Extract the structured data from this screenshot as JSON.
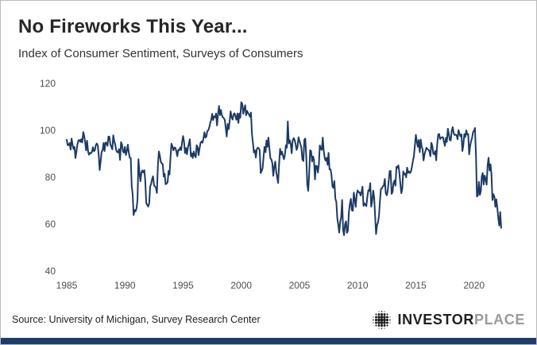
{
  "header": {
    "title": "No Fireworks This Year...",
    "subtitle": "Index of Consumer Sentiment, Surveys of Consumers"
  },
  "footer": {
    "source": "Source: University of Michigan, Survey Research Center",
    "brand_primary": "INVESTOR",
    "brand_secondary": "PLACE",
    "brand_icon": "dot-globe-icon"
  },
  "colors": {
    "line": "#1b3a66",
    "bottom_bar": "#1d3e6b",
    "title_text": "#262626",
    "axis_text": "#4d4d4d",
    "logo_dark": "#1c1c1c",
    "logo_gray": "#9a9a9a"
  },
  "chart_data": {
    "type": "line",
    "title": "No Fireworks This Year...",
    "subtitle": "Index of Consumer Sentiment, Surveys of Consumers",
    "xlabel": "",
    "ylabel": "",
    "ylim": [
      40,
      120
    ],
    "y_ticks": [
      40,
      60,
      80,
      100,
      120
    ],
    "x_ticks": [
      1985,
      1990,
      1995,
      2000,
      2005,
      2010,
      2015,
      2020
    ],
    "x_domain": [
      1985,
      2023.5
    ],
    "x_start_year": 1985,
    "frequency": "monthly",
    "grid": false,
    "legend": "none",
    "line_color": "#1b3a66",
    "series": [
      {
        "name": "Index of Consumer Sentiment",
        "values": [
          96.0,
          93.7,
          93.7,
          94.6,
          91.8,
          96.5,
          94.0,
          92.1,
          92.9,
          88.2,
          90.9,
          93.9,
          95.6,
          95.9,
          95.1,
          96.2,
          94.8,
          99.3,
          97.7,
          94.9,
          91.5,
          95.6,
          91.0,
          89.6,
          90.4,
          90.2,
          90.8,
          92.8,
          91.1,
          91.5,
          93.7,
          94.4,
          93.6,
          89.3,
          83.1,
          86.8,
          90.8,
          91.6,
          94.6,
          91.2,
          94.8,
          94.7,
          93.4,
          97.4,
          97.3,
          94.1,
          93.0,
          91.9,
          97.9,
          95.4,
          94.1,
          91.5,
          90.7,
          90.6,
          92.0,
          87.4,
          95.0,
          93.9,
          91.0,
          90.5,
          93.0,
          89.5,
          91.3,
          93.9,
          90.6,
          88.3,
          88.2,
          76.4,
          72.8,
          63.9,
          66.0,
          65.5,
          66.8,
          70.4,
          87.7,
          81.8,
          78.3,
          82.1,
          82.9,
          82.0,
          83.0,
          78.3,
          69.1,
          68.2,
          67.5,
          68.8,
          76.0,
          77.2,
          79.2,
          80.4,
          76.6,
          76.1,
          75.5,
          73.3,
          85.3,
          91.0,
          89.3,
          86.6,
          85.9,
          85.6,
          80.3,
          81.5,
          77.0,
          77.3,
          77.9,
          82.7,
          81.2,
          88.2,
          94.3,
          93.2,
          91.5,
          92.6,
          92.6,
          91.2,
          89.0,
          91.7,
          91.5,
          92.7,
          91.6,
          95.1,
          97.6,
          95.1,
          90.3,
          92.5,
          89.8,
          92.7,
          94.4,
          96.2,
          88.9,
          90.2,
          88.2,
          91.0,
          89.3,
          88.5,
          93.7,
          92.7,
          89.4,
          92.4,
          94.7,
          95.3,
          94.7,
          96.5,
          99.2,
          96.9,
          97.4,
          99.7,
          100.0,
          101.4,
          103.2,
          104.5,
          107.1,
          104.4,
          106.0,
          105.6,
          107.2,
          102.1,
          106.6,
          110.4,
          106.5,
          108.7,
          106.5,
          105.6,
          105.2,
          104.4,
          100.9,
          97.4,
          102.7,
          100.5,
          103.9,
          108.1,
          105.7,
          104.6,
          106.8,
          107.3,
          106.0,
          104.5,
          107.2,
          103.2,
          107.2,
          105.4,
          112.0,
          111.3,
          107.1,
          109.2,
          110.7,
          106.4,
          108.3,
          107.3,
          106.8,
          105.8,
          107.6,
          98.4,
          94.7,
          90.6,
          91.5,
          88.4,
          92.0,
          92.6,
          92.4,
          91.5,
          81.8,
          82.7,
          83.9,
          88.8,
          93.0,
          90.7,
          95.7,
          93.0,
          96.9,
          92.4,
          88.1,
          87.6,
          86.1,
          80.6,
          84.2,
          86.7,
          82.4,
          79.9,
          77.6,
          86.0,
          92.1,
          89.7,
          90.9,
          89.3,
          87.7,
          89.6,
          93.7,
          92.6,
          103.8,
          94.4,
          95.8,
          94.2,
          90.2,
          95.6,
          96.7,
          95.9,
          94.2,
          91.7,
          92.8,
          97.1,
          95.5,
          94.1,
          92.6,
          87.7,
          86.9,
          96.0,
          96.5,
          89.1,
          76.9,
          74.2,
          81.6,
          91.5,
          91.2,
          86.7,
          88.9,
          87.4,
          79.1,
          84.9,
          84.7,
          82.0,
          85.4,
          93.6,
          92.1,
          91.7,
          96.9,
          91.3,
          88.4,
          87.1,
          88.3,
          85.3,
          90.4,
          83.4,
          83.4,
          80.9,
          76.1,
          75.5,
          78.4,
          70.8,
          69.5,
          62.6,
          59.8,
          56.4,
          61.2,
          63.0,
          70.3,
          57.6,
          55.3,
          60.1,
          61.2,
          56.3,
          57.3,
          65.1,
          68.7,
          70.8,
          66.0,
          65.7,
          73.5,
          70.6,
          67.4,
          72.5,
          74.4,
          73.6,
          73.6,
          72.2,
          73.6,
          76.0,
          67.8,
          68.9,
          68.2,
          67.7,
          71.6,
          74.5,
          74.2,
          77.5,
          67.5,
          69.8,
          74.3,
          71.5,
          63.7,
          55.8,
          59.5,
          60.8,
          63.7,
          69.9,
          75.0,
          75.3,
          76.2,
          76.4,
          79.3,
          73.2,
          72.3,
          74.3,
          78.3,
          82.6,
          82.7,
          72.9,
          73.8,
          77.6,
          78.6,
          76.4,
          84.5,
          84.1,
          85.1,
          82.1,
          77.5,
          73.2,
          75.1,
          82.5,
          81.2,
          81.6,
          80.0,
          84.1,
          81.9,
          82.5,
          81.8,
          82.5,
          84.6,
          86.9,
          88.8,
          93.6,
          98.1,
          95.4,
          93.0,
          95.9,
          90.7,
          96.1,
          93.1,
          91.9,
          87.2,
          90.0,
          91.3,
          92.6,
          92.0,
          91.7,
          91.0,
          89.0,
          94.7,
          93.5,
          90.0,
          89.8,
          91.2,
          87.2,
          93.8,
          98.2,
          98.5,
          96.3,
          96.9,
          97.0,
          97.1,
          95.0,
          93.4,
          96.8,
          95.1,
          100.7,
          98.5,
          95.9,
          95.7,
          99.7,
          101.4,
          98.8,
          98.0,
          98.2,
          97.9,
          96.2,
          100.1,
          98.6,
          97.5,
          98.3,
          91.2,
          93.8,
          98.4,
          97.2,
          100.0,
          98.2,
          98.4,
          89.8,
          93.2,
          95.5,
          96.8,
          99.3,
          99.8,
          101.0,
          89.1,
          71.8,
          72.3,
          78.1,
          72.5,
          74.1,
          80.4,
          81.8,
          76.9,
          80.7,
          79.0,
          76.8,
          84.9,
          88.3,
          82.9,
          85.5,
          81.2,
          70.3,
          72.8,
          71.7,
          67.4,
          70.6,
          67.2,
          62.8,
          59.4,
          65.2,
          58.4
        ]
      }
    ]
  }
}
